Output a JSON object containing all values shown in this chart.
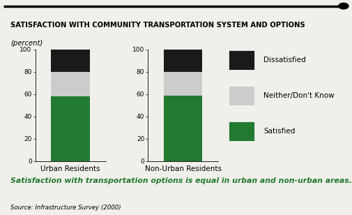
{
  "title": "SATISFACTION WITH COMMUNITY TRANSPORTATION SYSTEM AND OPTIONS",
  "subtitle": "(percent)",
  "categories": [
    "Urban Residents",
    "Non-Urban Residents"
  ],
  "satisfied": [
    58,
    59
  ],
  "neither": [
    22,
    21
  ],
  "dissatisfied": [
    20,
    20
  ],
  "colors": {
    "satisfied": "#217a30",
    "neither": "#cccccc",
    "dissatisfied": "#1a1a1a"
  },
  "legend_labels": [
    "Dissatisfied",
    "Neither/Don't Know",
    "Satisfied"
  ],
  "note": "Satisfaction with transportation options is equal in urban and non-urban areas.",
  "source": "Source: Infrastructure Survey (2000)",
  "note_color": "#217a30",
  "ylim": [
    0,
    100
  ],
  "yticks": [
    0,
    20,
    40,
    60,
    80,
    100
  ],
  "background_color": "#f0efea"
}
